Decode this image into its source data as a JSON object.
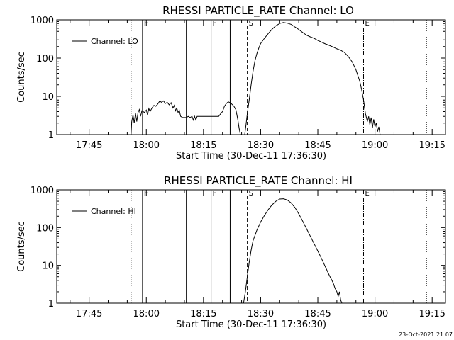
{
  "chart_data": [
    {
      "type": "line",
      "title": "RHESSI PARTICLE_RATE Channel: LO",
      "xlabel": "Start Time (30-Dec-11 17:36:30)",
      "ylabel": "Counts/sec",
      "y_scale": "log",
      "ylim": [
        1,
        1000
      ],
      "xlim": [
        "17:36:30",
        "19:18:30"
      ],
      "x_ticks": [
        "17:45",
        "18:00",
        "18:15",
        "18:30",
        "18:45",
        "19:00",
        "19:15"
      ],
      "y_ticks": [
        "1",
        "10",
        "100",
        "1000"
      ],
      "legend": {
        "label": "Channel: LO",
        "placement": "top-left"
      },
      "markers": [
        {
          "time": "17:56:00",
          "style": "dotted",
          "label": ""
        },
        {
          "time": "17:59:00",
          "style": "solid",
          "label": "F"
        },
        {
          "time": "18:10:30",
          "style": "solid",
          "label": ""
        },
        {
          "time": "18:17:00",
          "style": "solid",
          "label": "F"
        },
        {
          "time": "18:22:00",
          "style": "solid",
          "label": ""
        },
        {
          "time": "18:26:30",
          "style": "dashed",
          "label": "S"
        },
        {
          "time": "18:57:00",
          "style": "dashdot",
          "label": "E"
        },
        {
          "time": "19:13:30",
          "style": "dotted",
          "label": ""
        }
      ],
      "series": [
        {
          "points": [
            [
              "17:56:00",
              1.0
            ],
            [
              "17:56:10",
              2.2
            ],
            [
              "17:56:30",
              3.3
            ],
            [
              "17:56:50",
              2.0
            ],
            [
              "17:57:10",
              3.6
            ],
            [
              "17:57:30",
              2.2
            ],
            [
              "17:57:50",
              3.8
            ],
            [
              "17:58:10",
              4.5
            ],
            [
              "17:58:30",
              3.0
            ],
            [
              "17:58:50",
              4.2
            ],
            [
              "17:59:30",
              3.8
            ],
            [
              "18:00:00",
              4.4
            ],
            [
              "18:00:20",
              3.3
            ],
            [
              "18:00:40",
              4.8
            ],
            [
              "18:01:00",
              4.0
            ],
            [
              "18:01:30",
              5.0
            ],
            [
              "18:02:00",
              5.8
            ],
            [
              "18:02:30",
              5.5
            ],
            [
              "18:03:00",
              6.3
            ],
            [
              "18:03:30",
              7.5
            ],
            [
              "18:04:00",
              7.0
            ],
            [
              "18:04:30",
              7.6
            ],
            [
              "18:05:00",
              6.5
            ],
            [
              "18:05:30",
              7.0
            ],
            [
              "18:06:00",
              6.0
            ],
            [
              "18:06:30",
              6.8
            ],
            [
              "18:07:00",
              5.0
            ],
            [
              "18:07:20",
              5.8
            ],
            [
              "18:07:40",
              4.2
            ],
            [
              "18:08:00",
              5.0
            ],
            [
              "18:08:20",
              3.8
            ],
            [
              "18:08:40",
              4.3
            ],
            [
              "18:09:00",
              3.0
            ],
            [
              "18:09:30",
              2.8
            ],
            [
              "18:10:00",
              2.8
            ],
            [
              "18:10:30",
              2.8
            ],
            [
              "18:11:00",
              3.0
            ],
            [
              "18:11:30",
              2.8
            ],
            [
              "18:12:00",
              3.0
            ],
            [
              "18:12:20",
              2.4
            ],
            [
              "18:12:40",
              3.0
            ],
            [
              "18:13:00",
              2.4
            ],
            [
              "18:13:20",
              3.0
            ],
            [
              "18:14:00",
              3.0
            ],
            [
              "18:16:00",
              3.0
            ],
            [
              "18:18:00",
              3.0
            ],
            [
              "18:19:00",
              3.0
            ],
            [
              "18:19:30",
              3.5
            ],
            [
              "18:20:00",
              4.0
            ],
            [
              "18:20:30",
              5.5
            ],
            [
              "18:21:00",
              6.5
            ],
            [
              "18:21:30",
              7.2
            ],
            [
              "18:22:00",
              6.8
            ],
            [
              "18:22:30",
              6.2
            ],
            [
              "18:23:00",
              5.5
            ],
            [
              "18:23:30",
              4.5
            ],
            [
              "18:24:00",
              2.5
            ],
            [
              "18:24:20",
              1.5
            ],
            [
              "18:24:40",
              1.0
            ]
          ]
        },
        {
          "points": [
            [
              "18:25:50",
              1.0
            ],
            [
              "18:26:10",
              1.8
            ],
            [
              "18:26:30",
              3.5
            ],
            [
              "18:27:00",
              8.0
            ],
            [
              "18:27:30",
              20
            ],
            [
              "18:28:00",
              45
            ],
            [
              "18:28:30",
              85
            ],
            [
              "18:29:00",
              130
            ],
            [
              "18:29:30",
              180
            ],
            [
              "18:30:00",
              240
            ],
            [
              "18:31:00",
              330
            ],
            [
              "18:32:00",
              440
            ],
            [
              "18:33:00",
              570
            ],
            [
              "18:34:00",
              700
            ],
            [
              "18:35:00",
              800
            ],
            [
              "18:36:00",
              850
            ],
            [
              "18:37:00",
              820
            ],
            [
              "18:38:00",
              760
            ],
            [
              "18:39:00",
              650
            ],
            [
              "18:40:00",
              560
            ],
            [
              "18:41:00",
              470
            ],
            [
              "18:42:00",
              400
            ],
            [
              "18:43:00",
              360
            ],
            [
              "18:44:00",
              330
            ],
            [
              "18:45:00",
              290
            ],
            [
              "18:46:00",
              260
            ],
            [
              "18:47:00",
              235
            ],
            [
              "18:48:00",
              215
            ],
            [
              "18:49:00",
              195
            ],
            [
              "18:50:00",
              175
            ],
            [
              "18:51:00",
              160
            ],
            [
              "18:52:00",
              140
            ],
            [
              "18:53:00",
              110
            ],
            [
              "18:54:00",
              80
            ],
            [
              "18:55:00",
              50
            ],
            [
              "18:56:00",
              25
            ],
            [
              "18:56:30",
              15
            ],
            [
              "18:57:00",
              8
            ],
            [
              "18:57:30",
              3.5
            ],
            [
              "18:58:00",
              2.2
            ],
            [
              "18:58:20",
              3.0
            ],
            [
              "18:58:40",
              1.8
            ],
            [
              "18:59:00",
              2.8
            ],
            [
              "18:59:20",
              1.5
            ],
            [
              "18:59:40",
              2.5
            ],
            [
              "19:00:00",
              1.6
            ],
            [
              "19:00:20",
              2.0
            ],
            [
              "19:00:40",
              1.2
            ],
            [
              "19:01:00",
              1.6
            ],
            [
              "19:01:20",
              1.0
            ]
          ]
        }
      ]
    },
    {
      "type": "line",
      "title": "RHESSI PARTICLE_RATE Channel: HI",
      "xlabel": "Start Time (30-Dec-11 17:36:30)",
      "ylabel": "Counts/sec",
      "y_scale": "log",
      "ylim": [
        1,
        1000
      ],
      "xlim": [
        "17:36:30",
        "19:18:30"
      ],
      "x_ticks": [
        "17:45",
        "18:00",
        "18:15",
        "18:30",
        "18:45",
        "19:00",
        "19:15"
      ],
      "y_ticks": [
        "1",
        "10",
        "100",
        "1000"
      ],
      "legend": {
        "label": "Channel: HI",
        "placement": "top-left"
      },
      "markers": [
        {
          "time": "17:56:00",
          "style": "dotted",
          "label": ""
        },
        {
          "time": "17:59:00",
          "style": "solid",
          "label": "F"
        },
        {
          "time": "18:10:30",
          "style": "solid",
          "label": ""
        },
        {
          "time": "18:17:00",
          "style": "solid",
          "label": "F"
        },
        {
          "time": "18:22:00",
          "style": "solid",
          "label": ""
        },
        {
          "time": "18:26:30",
          "style": "dashed",
          "label": "S"
        },
        {
          "time": "18:57:00",
          "style": "dashdot",
          "label": "E"
        },
        {
          "time": "19:13:30",
          "style": "dotted",
          "label": ""
        }
      ],
      "series": [
        {
          "points": [
            [
              "18:25:30",
              1.0
            ],
            [
              "18:26:00",
              2.0
            ],
            [
              "18:26:30",
              5.0
            ],
            [
              "18:27:00",
              12
            ],
            [
              "18:27:30",
              25
            ],
            [
              "18:28:00",
              45
            ],
            [
              "18:29:00",
              85
            ],
            [
              "18:30:00",
              140
            ],
            [
              "18:31:00",
              210
            ],
            [
              "18:32:00",
              300
            ],
            [
              "18:33:00",
              400
            ],
            [
              "18:34:00",
              500
            ],
            [
              "18:35:00",
              570
            ],
            [
              "18:36:00",
              580
            ],
            [
              "18:37:00",
              540
            ],
            [
              "18:38:00",
              450
            ],
            [
              "18:39:00",
              340
            ],
            [
              "18:40:00",
              230
            ],
            [
              "18:41:00",
              150
            ],
            [
              "18:42:00",
              95
            ],
            [
              "18:43:00",
              60
            ],
            [
              "18:44:00",
              38
            ],
            [
              "18:45:00",
              24
            ],
            [
              "18:46:00",
              15
            ],
            [
              "18:47:00",
              9
            ],
            [
              "18:48:00",
              5.5
            ],
            [
              "18:49:00",
              3.5
            ],
            [
              "18:49:30",
              2.5
            ],
            [
              "18:50:00",
              2.0
            ],
            [
              "18:50:20",
              1.5
            ],
            [
              "18:50:40",
              2.0
            ],
            [
              "18:51:00",
              1.2
            ],
            [
              "18:51:20",
              1.0
            ]
          ]
        }
      ]
    }
  ],
  "footer": {
    "timestamp": "23-Oct-2021 21:07"
  }
}
